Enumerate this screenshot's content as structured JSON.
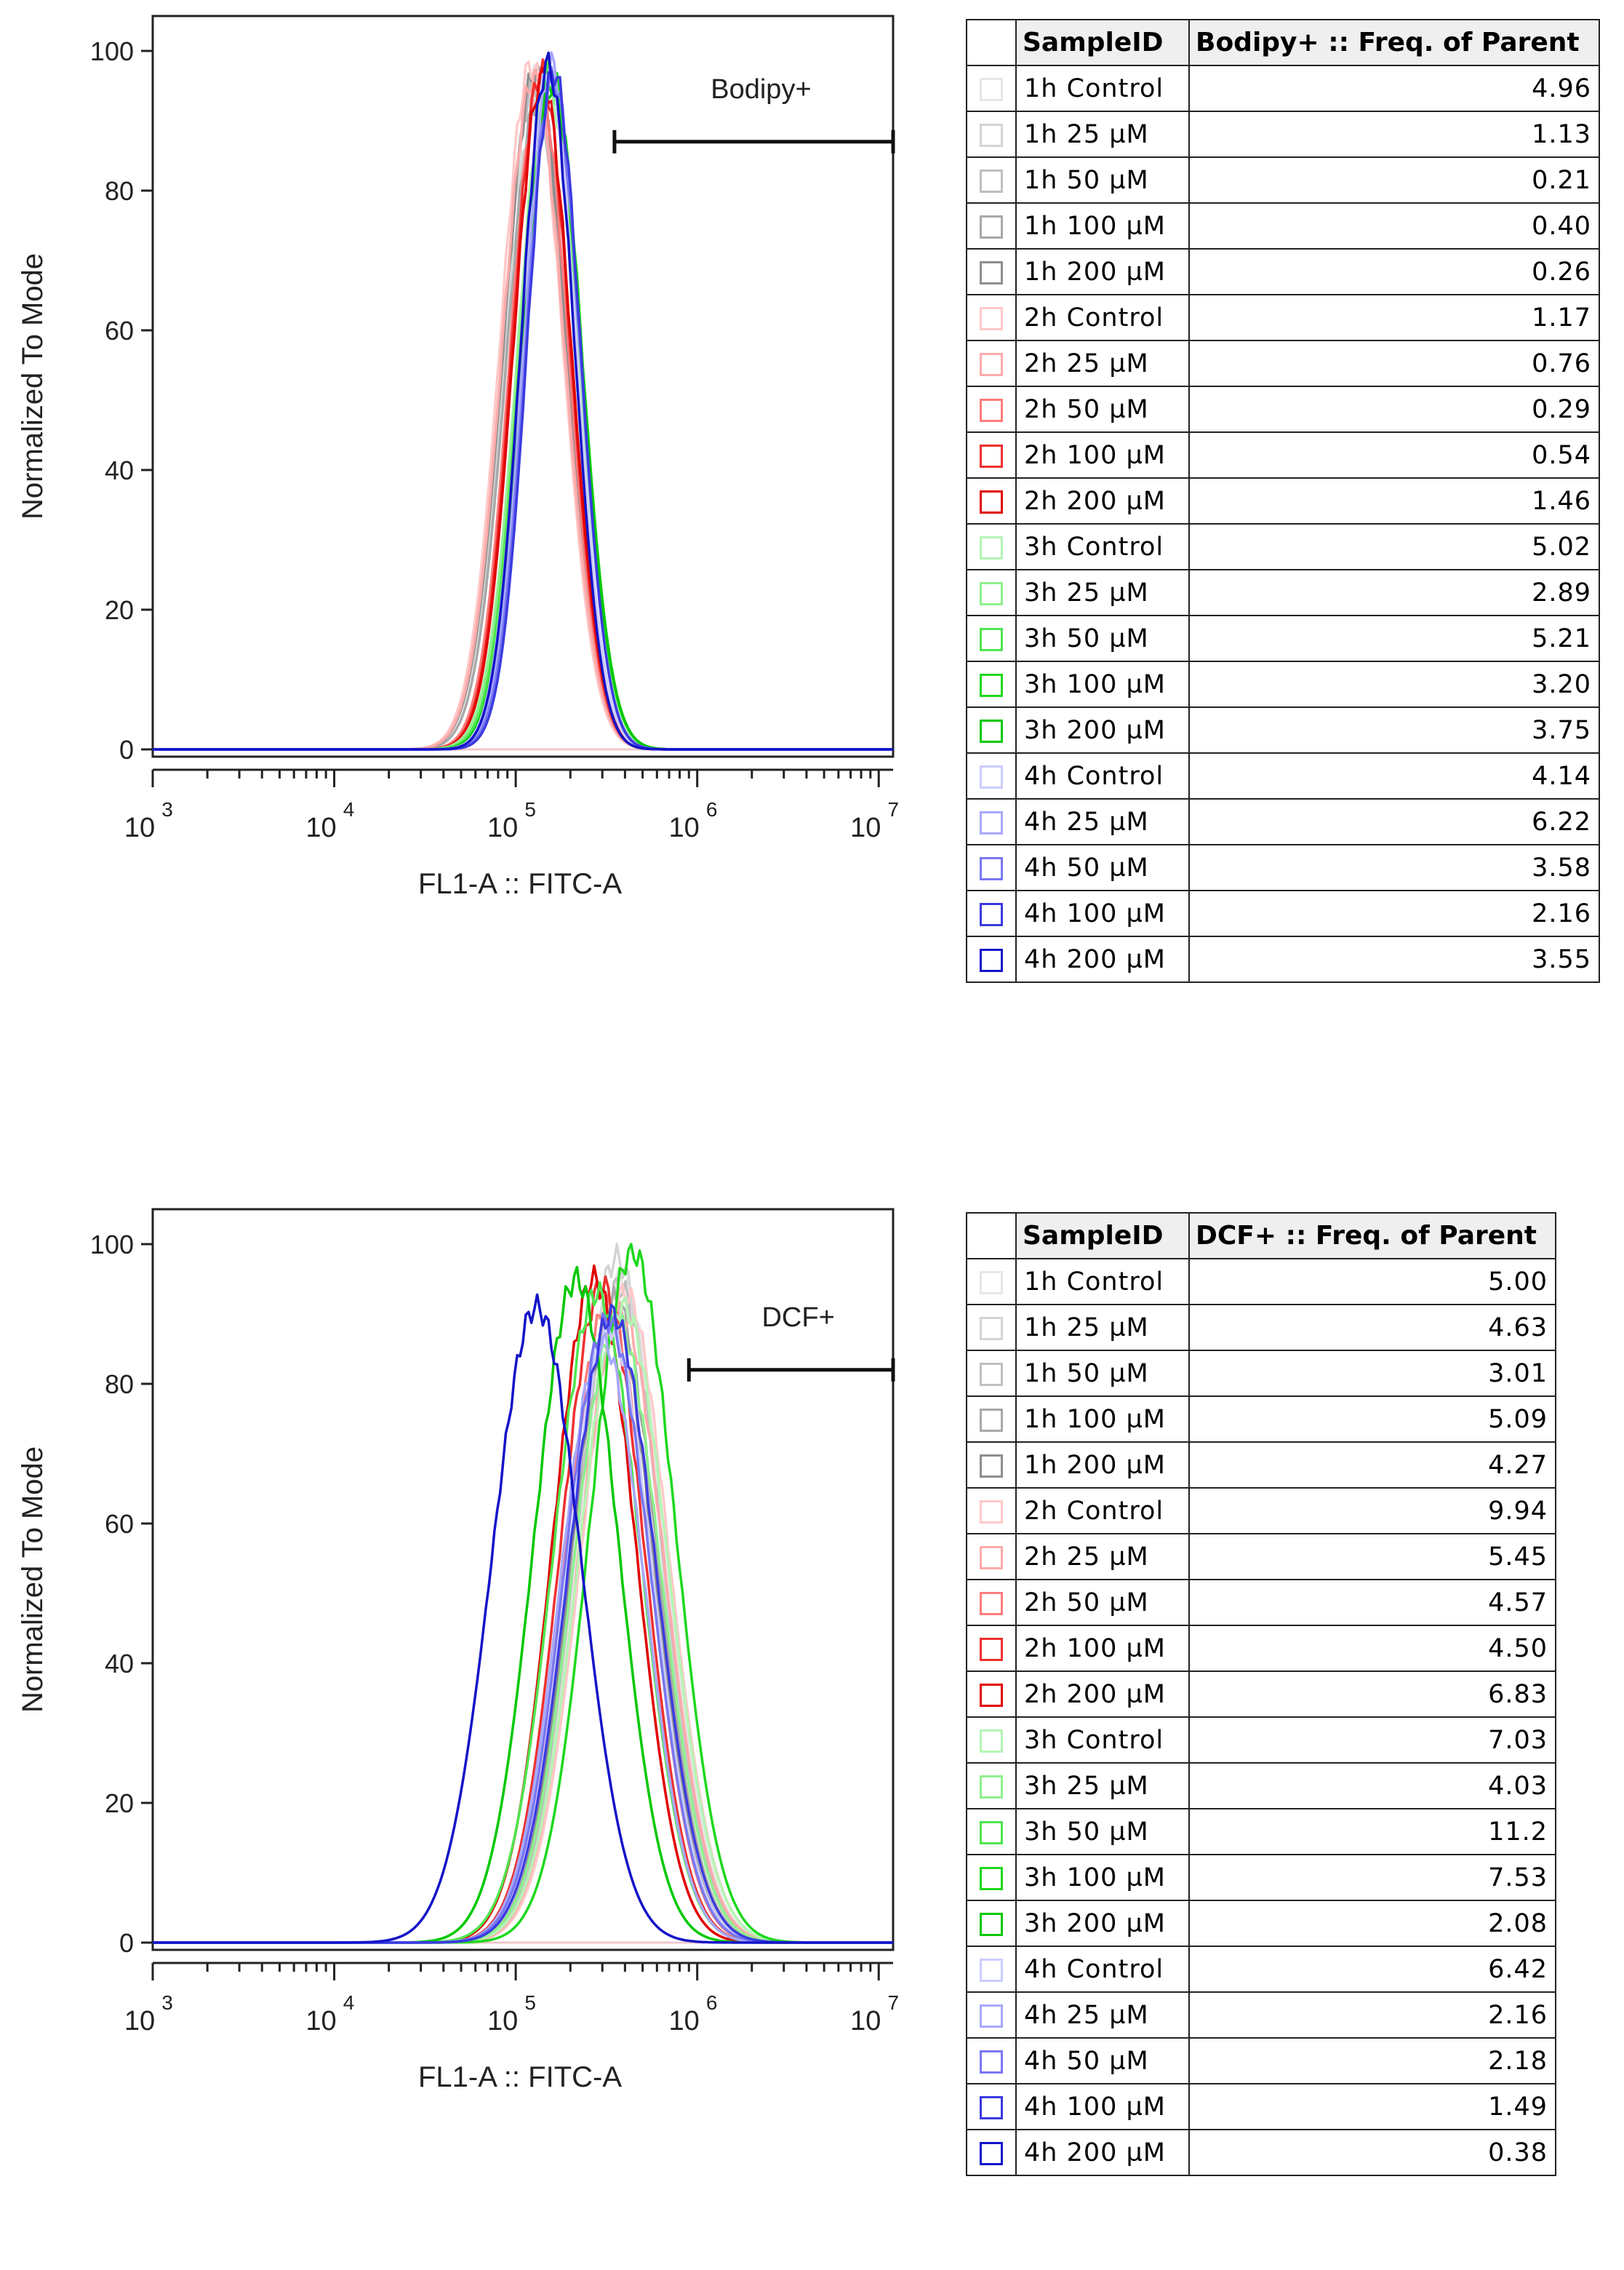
{
  "panels": [
    {
      "gate_label": "Bodipy+",
      "chart_data": {
        "type": "line",
        "title": "",
        "xlabel": "FL1-A :: FITC-A",
        "ylabel": "Normalized To Mode",
        "xscale": "log",
        "xlim": [
          1000,
          12000000
        ],
        "ylim": [
          0,
          100
        ],
        "y_ticks": [
          "0",
          "20",
          "40",
          "60",
          "80",
          "100"
        ],
        "x_ticks": [
          {
            "base": "10",
            "exp": "3"
          },
          {
            "base": "10",
            "exp": "4"
          },
          {
            "base": "10",
            "exp": "5"
          },
          {
            "base": "10",
            "exp": "6"
          },
          {
            "base": "10",
            "exp": "7"
          }
        ],
        "gate": {
          "label": "Bodipy+",
          "x_start": 350000,
          "x_end": 12000000,
          "y": 87
        },
        "series": [
          {
            "name": "1h Control",
            "peak_x": 128000,
            "peak_y": 96,
            "width": 0.172,
            "color": "#e6e6e6"
          },
          {
            "name": "1h 25 µM",
            "peak_x": 130000,
            "peak_y": 92,
            "width": 0.175,
            "color": "#d4d4d4"
          },
          {
            "name": "1h 50 µM",
            "peak_x": 126000,
            "peak_y": 95,
            "width": 0.172,
            "color": "#bfbfbf"
          },
          {
            "name": "1h 100 µM",
            "peak_x": 132000,
            "peak_y": 93,
            "width": 0.17,
            "color": "#a8a8a8"
          },
          {
            "name": "1h 200 µM",
            "peak_x": 128000,
            "peak_y": 97,
            "width": 0.172,
            "color": "#8e8e8e"
          },
          {
            "name": "2h Control",
            "peak_x": 122000,
            "peak_y": 98,
            "width": 0.17,
            "color": "#ffc8c8"
          },
          {
            "name": "2h 25 µM",
            "peak_x": 125000,
            "peak_y": 96,
            "width": 0.17,
            "color": "#ffaaaa"
          },
          {
            "name": "2h 50 µM",
            "peak_x": 135000,
            "peak_y": 95,
            "width": 0.16,
            "color": "#ff7c7c"
          },
          {
            "name": "2h 100 µM",
            "peak_x": 138000,
            "peak_y": 97,
            "width": 0.158,
            "color": "#ee3030"
          },
          {
            "name": "2h 200 µM",
            "peak_x": 140000,
            "peak_y": 96,
            "width": 0.158,
            "color": "#e00000"
          },
          {
            "name": "3h Control",
            "peak_x": 150000,
            "peak_y": 95,
            "width": 0.165,
            "color": "#b4f5b4"
          },
          {
            "name": "3h 25 µM",
            "peak_x": 152000,
            "peak_y": 96,
            "width": 0.165,
            "color": "#8ef08e"
          },
          {
            "name": "3h 50 µM",
            "peak_x": 155000,
            "peak_y": 97,
            "width": 0.162,
            "color": "#4ee64e"
          },
          {
            "name": "3h 100 µM",
            "peak_x": 160000,
            "peak_y": 96,
            "width": 0.158,
            "color": "#1ed81e"
          },
          {
            "name": "3h 200 µM",
            "peak_x": 158000,
            "peak_y": 95,
            "width": 0.16,
            "color": "#00c800"
          },
          {
            "name": "4h Control",
            "peak_x": 152000,
            "peak_y": 97,
            "width": 0.15,
            "color": "#ccccff"
          },
          {
            "name": "4h 25 µM",
            "peak_x": 158000,
            "peak_y": 98,
            "width": 0.15,
            "color": "#a8a8ff"
          },
          {
            "name": "4h 50 µM",
            "peak_x": 160000,
            "peak_y": 96,
            "width": 0.148,
            "color": "#7878f2"
          },
          {
            "name": "4h 100 µM",
            "peak_x": 162000,
            "peak_y": 97,
            "width": 0.145,
            "color": "#3a3ae0"
          },
          {
            "name": "4h 200 µM",
            "peak_x": 150000,
            "peak_y": 98,
            "width": 0.145,
            "color": "#1414c8"
          }
        ]
      },
      "table": {
        "col_sample": "SampleID",
        "col_value": "Bodipy+ :: Freq. of Parent",
        "rows": [
          {
            "name": "1h Control",
            "value": "4.96",
            "color": "#e6e6e6"
          },
          {
            "name": "1h 25 µM",
            "value": "1.13",
            "color": "#d4d4d4"
          },
          {
            "name": "1h 50 µM",
            "value": "0.21",
            "color": "#bfbfbf"
          },
          {
            "name": "1h 100 µM",
            "value": "0.40",
            "color": "#a8a8a8"
          },
          {
            "name": "1h 200 µM",
            "value": "0.26",
            "color": "#8e8e8e"
          },
          {
            "name": "2h Control",
            "value": "1.17",
            "color": "#ffc8c8"
          },
          {
            "name": "2h 25 µM",
            "value": "0.76",
            "color": "#ffaaaa"
          },
          {
            "name": "2h 50 µM",
            "value": "0.29",
            "color": "#ff7c7c"
          },
          {
            "name": "2h 100 µM",
            "value": "0.54",
            "color": "#ee3030"
          },
          {
            "name": "2h 200 µM",
            "value": "1.46",
            "color": "#e00000"
          },
          {
            "name": "3h Control",
            "value": "5.02",
            "color": "#b4f5b4"
          },
          {
            "name": "3h 25 µM",
            "value": "2.89",
            "color": "#8ef08e"
          },
          {
            "name": "3h 50 µM",
            "value": "5.21",
            "color": "#4ee64e"
          },
          {
            "name": "3h 100 µM",
            "value": "3.20",
            "color": "#1ed81e"
          },
          {
            "name": "3h 200 µM",
            "value": "3.75",
            "color": "#00c800"
          },
          {
            "name": "4h Control",
            "value": "4.14",
            "color": "#ccccff"
          },
          {
            "name": "4h 25 µM",
            "value": "6.22",
            "color": "#a8a8ff"
          },
          {
            "name": "4h 50 µM",
            "value": "3.58",
            "color": "#7878f2"
          },
          {
            "name": "4h 100 µM",
            "value": "2.16",
            "color": "#3a3ae0"
          },
          {
            "name": "4h 200 µM",
            "value": "3.55",
            "color": "#1414c8"
          }
        ]
      }
    },
    {
      "gate_label": "DCF+",
      "chart_data": {
        "type": "line",
        "title": "",
        "xlabel": "FL1-A :: FITC-A",
        "ylabel": "Normalized To Mode",
        "xscale": "log",
        "xlim": [
          1000,
          12000000
        ],
        "ylim": [
          0,
          100
        ],
        "y_ticks": [
          "0",
          "20",
          "40",
          "60",
          "80",
          "100"
        ],
        "x_ticks": [
          {
            "base": "10",
            "exp": "3"
          },
          {
            "base": "10",
            "exp": "4"
          },
          {
            "base": "10",
            "exp": "5"
          },
          {
            "base": "10",
            "exp": "6"
          },
          {
            "base": "10",
            "exp": "7"
          }
        ],
        "gate": {
          "label": "DCF+",
          "x_start": 900000,
          "x_end": 12000000,
          "y": 82
        },
        "series": [
          {
            "name": "1h Control",
            "peak_x": 380000,
            "peak_y": 95,
            "width": 0.24,
            "color": "#e6e6e6"
          },
          {
            "name": "1h 25 µM",
            "peak_x": 360000,
            "peak_y": 98,
            "width": 0.235,
            "color": "#d4d4d4"
          },
          {
            "name": "1h 50 µM",
            "peak_x": 370000,
            "peak_y": 94,
            "width": 0.238,
            "color": "#bfbfbf"
          },
          {
            "name": "1h 100 µM",
            "peak_x": 350000,
            "peak_y": 92,
            "width": 0.235,
            "color": "#a8a8a8"
          },
          {
            "name": "1h 200 µM",
            "peak_x": 340000,
            "peak_y": 90,
            "width": 0.23,
            "color": "#8e8e8e"
          },
          {
            "name": "2h Control",
            "peak_x": 400000,
            "peak_y": 93,
            "width": 0.24,
            "color": "#ffc8c8"
          },
          {
            "name": "2h 25 µM",
            "peak_x": 380000,
            "peak_y": 90,
            "width": 0.238,
            "color": "#ffaaaa"
          },
          {
            "name": "2h 50 µM",
            "peak_x": 320000,
            "peak_y": 91,
            "width": 0.232,
            "color": "#ff7c7c"
          },
          {
            "name": "2h 100 µM",
            "peak_x": 300000,
            "peak_y": 94,
            "width": 0.23,
            "color": "#ee3030"
          },
          {
            "name": "2h 200 µM",
            "peak_x": 270000,
            "peak_y": 95,
            "width": 0.228,
            "color": "#e00000"
          },
          {
            "name": "3h Control",
            "peak_x": 390000,
            "peak_y": 91,
            "width": 0.245,
            "color": "#b4f5b4"
          },
          {
            "name": "3h 25 µM",
            "peak_x": 360000,
            "peak_y": 89,
            "width": 0.24,
            "color": "#8ef08e"
          },
          {
            "name": "3h 50 µM",
            "peak_x": 280000,
            "peak_y": 93,
            "width": 0.238,
            "color": "#4ee64e"
          },
          {
            "name": "3h 100 µM",
            "peak_x": 440000,
            "peak_y": 99,
            "width": 0.235,
            "color": "#1ed81e"
          },
          {
            "name": "3h 200 µM",
            "peak_x": 215000,
            "peak_y": 95,
            "width": 0.232,
            "color": "#00c800"
          },
          {
            "name": "4h Control",
            "peak_x": 330000,
            "peak_y": 88,
            "width": 0.235,
            "color": "#ccccff"
          },
          {
            "name": "4h 25 µM",
            "peak_x": 300000,
            "peak_y": 86,
            "width": 0.23,
            "color": "#a8a8ff"
          },
          {
            "name": "4h 50 µM",
            "peak_x": 320000,
            "peak_y": 89,
            "width": 0.235,
            "color": "#7878f2"
          },
          {
            "name": "4h 100 µM",
            "peak_x": 340000,
            "peak_y": 90,
            "width": 0.238,
            "color": "#3a3ae0"
          },
          {
            "name": "4h 200 µM",
            "peak_x": 130000,
            "peak_y": 91,
            "width": 0.245,
            "color": "#1414c8"
          }
        ]
      },
      "table": {
        "col_sample": "SampleID",
        "col_value": "DCF+ :: Freq. of Parent",
        "rows": [
          {
            "name": "1h Control",
            "value": "5.00",
            "color": "#e6e6e6"
          },
          {
            "name": "1h 25 µM",
            "value": "4.63",
            "color": "#d4d4d4"
          },
          {
            "name": "1h 50 µM",
            "value": "3.01",
            "color": "#bfbfbf"
          },
          {
            "name": "1h 100 µM",
            "value": "5.09",
            "color": "#a8a8a8"
          },
          {
            "name": "1h 200 µM",
            "value": "4.27",
            "color": "#8e8e8e"
          },
          {
            "name": "2h Control",
            "value": "9.94",
            "color": "#ffc8c8"
          },
          {
            "name": "2h 25 µM",
            "value": "5.45",
            "color": "#ffaaaa"
          },
          {
            "name": "2h 50 µM",
            "value": "4.57",
            "color": "#ff7c7c"
          },
          {
            "name": "2h 100 µM",
            "value": "4.50",
            "color": "#ee3030"
          },
          {
            "name": "2h 200 µM",
            "value": "6.83",
            "color": "#e00000"
          },
          {
            "name": "3h Control",
            "value": "7.03",
            "color": "#b4f5b4"
          },
          {
            "name": "3h 25 µM",
            "value": "4.03",
            "color": "#8ef08e"
          },
          {
            "name": "3h 50 µM",
            "value": "11.2",
            "color": "#4ee64e"
          },
          {
            "name": "3h 100 µM",
            "value": "7.53",
            "color": "#1ed81e"
          },
          {
            "name": "3h 200 µM",
            "value": "2.08",
            "color": "#00c800"
          },
          {
            "name": "4h Control",
            "value": "6.42",
            "color": "#ccccff"
          },
          {
            "name": "4h 25 µM",
            "value": "2.16",
            "color": "#a8a8ff"
          },
          {
            "name": "4h 50 µM",
            "value": "2.18",
            "color": "#7878f2"
          },
          {
            "name": "4h 100 µM",
            "value": "1.49",
            "color": "#3a3ae0"
          },
          {
            "name": "4h 200 µM",
            "value": "0.38",
            "color": "#1414c8"
          }
        ]
      }
    }
  ]
}
